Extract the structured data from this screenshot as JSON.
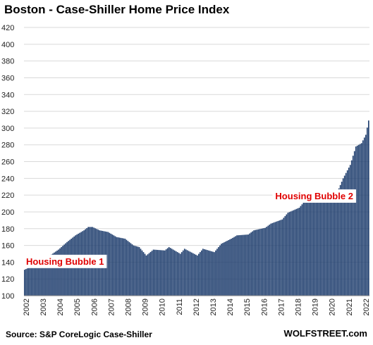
{
  "header": {
    "title": "Boston - Case-Shiller Home Price Index"
  },
  "footer": {
    "source": "Source: S&P CoreLogic Case-Shiller",
    "brand": "WOLFSTREET.com"
  },
  "colors": {
    "bar": "#1f3e6e",
    "annotation": "#e00000"
  },
  "chart_data": {
    "type": "bar",
    "title": "Boston - Case-Shiller Home Price Index",
    "xlabel": "",
    "ylabel": "",
    "ylim": [
      100,
      420
    ],
    "yticks": [
      100,
      120,
      140,
      160,
      180,
      200,
      220,
      240,
      260,
      280,
      300,
      320,
      340,
      360,
      380,
      400,
      420
    ],
    "xticks": [
      "2002",
      "2003",
      "2004",
      "2005",
      "2006",
      "2007",
      "2008",
      "2009",
      "2010",
      "2011",
      "2012",
      "2013",
      "2014",
      "2015",
      "2016",
      "2017",
      "2018",
      "2019",
      "2020",
      "2021",
      "2022"
    ],
    "grid": true,
    "frequency": "monthly",
    "x_start": "2002-01",
    "x_end": "2022-04",
    "anchors": [
      [
        "2002-01",
        131
      ],
      [
        "2002-07",
        136
      ],
      [
        "2003-01",
        141
      ],
      [
        "2003-07",
        148
      ],
      [
        "2004-01",
        155
      ],
      [
        "2004-07",
        164
      ],
      [
        "2005-01",
        172
      ],
      [
        "2005-07",
        178
      ],
      [
        "2005-10",
        182
      ],
      [
        "2006-01",
        182
      ],
      [
        "2006-06",
        178
      ],
      [
        "2006-12",
        176
      ],
      [
        "2007-06",
        170
      ],
      [
        "2007-12",
        168
      ],
      [
        "2008-06",
        160
      ],
      [
        "2008-10",
        158
      ],
      [
        "2009-03",
        148
      ],
      [
        "2009-08",
        155
      ],
      [
        "2010-04",
        154
      ],
      [
        "2010-07",
        158
      ],
      [
        "2011-03",
        150
      ],
      [
        "2011-06",
        156
      ],
      [
        "2012-03",
        148
      ],
      [
        "2012-07",
        156
      ],
      [
        "2013-03",
        152
      ],
      [
        "2013-08",
        162
      ],
      [
        "2014-03",
        168
      ],
      [
        "2014-07",
        172
      ],
      [
        "2015-03",
        173
      ],
      [
        "2015-07",
        178
      ],
      [
        "2016-03",
        181
      ],
      [
        "2016-07",
        186
      ],
      [
        "2017-03",
        191
      ],
      [
        "2017-07",
        199
      ],
      [
        "2018-03",
        205
      ],
      [
        "2018-07",
        213
      ],
      [
        "2019-03",
        214
      ],
      [
        "2019-07",
        220
      ],
      [
        "2020-03",
        223
      ],
      [
        "2020-07",
        228
      ],
      [
        "2020-10",
        240
      ],
      [
        "2021-03",
        256
      ],
      [
        "2021-07",
        278
      ],
      [
        "2021-11",
        282
      ],
      [
        "2022-02",
        292
      ],
      [
        "2022-04",
        309
      ]
    ],
    "annotations": [
      {
        "text": "Housing Bubble 1",
        "x": "2004-06",
        "y": 140
      },
      {
        "text": "Housing Bubble 2",
        "x": "2019-02",
        "y": 218
      }
    ]
  }
}
